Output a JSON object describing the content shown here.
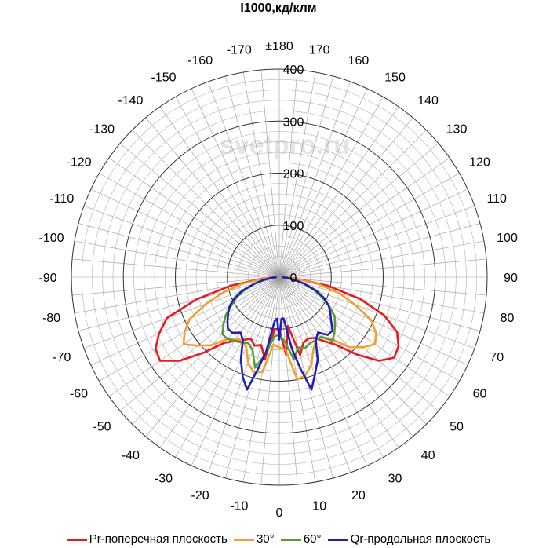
{
  "chart_data": {
    "type": "polar",
    "title": "I1000,кд/клм",
    "radial_axis": {
      "range": [
        0,
        400
      ],
      "labeled_ticks": [
        0,
        100,
        200,
        300,
        400
      ],
      "unit": "кд/клм"
    },
    "angle_ticks": [
      "±180",
      "170",
      "160",
      "150",
      "140",
      "130",
      "120",
      "110",
      "100",
      "90",
      "80",
      "70",
      "60",
      "50",
      "40",
      "30",
      "20",
      "10",
      "0",
      "-10",
      "-20",
      "-30",
      "-40",
      "-50",
      "-60",
      "-70",
      "-80",
      "-90",
      "-100",
      "-110",
      "-120",
      "-130",
      "-140",
      "-150",
      "-160",
      "-170"
    ],
    "angle_tick_values": [
      180,
      170,
      160,
      150,
      140,
      130,
      120,
      110,
      100,
      90,
      80,
      70,
      60,
      50,
      40,
      30,
      20,
      10,
      0,
      -10,
      -20,
      -30,
      -40,
      -50,
      -60,
      -70,
      -80,
      -90,
      -100,
      -110,
      -120,
      -130,
      -140,
      -150,
      -160,
      -170
    ],
    "grid": true,
    "legend_position": "bottom",
    "watermark": "svetpro.ru",
    "series": [
      {
        "name": "Pr-поперечная плоскость",
        "color": "#e8191f",
        "points": [
          [
            0,
            100
          ],
          [
            5,
            150
          ],
          [
            10,
            95
          ],
          [
            15,
            155
          ],
          [
            20,
            135
          ],
          [
            25,
            130
          ],
          [
            30,
            135
          ],
          [
            35,
            150
          ],
          [
            40,
            170
          ],
          [
            45,
            210
          ],
          [
            50,
            250
          ],
          [
            55,
            270
          ],
          [
            60,
            265
          ],
          [
            65,
            250
          ],
          [
            70,
            215
          ],
          [
            75,
            160
          ],
          [
            80,
            95
          ],
          [
            85,
            30
          ],
          [
            90,
            10
          ],
          [
            -5,
            100
          ],
          [
            -10,
            160
          ],
          [
            -15,
            135
          ],
          [
            -20,
            140
          ],
          [
            -25,
            130
          ],
          [
            -30,
            140
          ],
          [
            -35,
            150
          ],
          [
            -40,
            165
          ],
          [
            -45,
            205
          ],
          [
            -50,
            250
          ],
          [
            -55,
            280
          ],
          [
            -60,
            275
          ],
          [
            -65,
            255
          ],
          [
            -70,
            230
          ],
          [
            -75,
            165
          ],
          [
            -80,
            95
          ],
          [
            -85,
            30
          ],
          [
            -90,
            10
          ]
        ]
      },
      {
        "name": "30°",
        "color": "#f0a030",
        "points": [
          [
            0,
            135
          ],
          [
            5,
            140
          ],
          [
            10,
            200
          ],
          [
            15,
            195
          ],
          [
            20,
            180
          ],
          [
            25,
            155
          ],
          [
            30,
            140
          ],
          [
            35,
            140
          ],
          [
            40,
            155
          ],
          [
            45,
            190
          ],
          [
            50,
            210
          ],
          [
            55,
            225
          ],
          [
            60,
            215
          ],
          [
            65,
            195
          ],
          [
            70,
            155
          ],
          [
            75,
            120
          ],
          [
            80,
            75
          ],
          [
            85,
            25
          ],
          [
            90,
            5
          ],
          [
            -5,
            130
          ],
          [
            -10,
            185
          ],
          [
            -15,
            190
          ],
          [
            -20,
            175
          ],
          [
            -25,
            150
          ],
          [
            -30,
            140
          ],
          [
            -35,
            145
          ],
          [
            -40,
            155
          ],
          [
            -45,
            185
          ],
          [
            -50,
            205
          ],
          [
            -55,
            225
          ],
          [
            -60,
            210
          ],
          [
            -65,
            190
          ],
          [
            -70,
            150
          ],
          [
            -75,
            110
          ],
          [
            -80,
            70
          ],
          [
            -85,
            25
          ],
          [
            -90,
            5
          ]
        ]
      },
      {
        "name": "60°",
        "color": "#5a9a3a",
        "points": [
          [
            0,
            110
          ],
          [
            5,
            125
          ],
          [
            10,
            160
          ],
          [
            15,
            140
          ],
          [
            20,
            145
          ],
          [
            25,
            140
          ],
          [
            30,
            140
          ],
          [
            35,
            140
          ],
          [
            40,
            160
          ],
          [
            45,
            150
          ],
          [
            50,
            140
          ],
          [
            55,
            130
          ],
          [
            60,
            110
          ],
          [
            65,
            90
          ],
          [
            70,
            70
          ],
          [
            75,
            50
          ],
          [
            80,
            30
          ],
          [
            85,
            15
          ],
          [
            90,
            5
          ],
          [
            -5,
            115
          ],
          [
            -10,
            150
          ],
          [
            -15,
            180
          ],
          [
            -20,
            150
          ],
          [
            -25,
            140
          ],
          [
            -30,
            145
          ],
          [
            -35,
            150
          ],
          [
            -40,
            155
          ],
          [
            -45,
            155
          ],
          [
            -50,
            140
          ],
          [
            -55,
            125
          ],
          [
            -60,
            105
          ],
          [
            -65,
            90
          ],
          [
            -70,
            70
          ],
          [
            -75,
            50
          ],
          [
            -80,
            30
          ],
          [
            -85,
            15
          ],
          [
            -90,
            5
          ]
        ]
      },
      {
        "name": "Qr-продольная плоскость",
        "color": "#1f1fb4",
        "points": [
          [
            0,
            120
          ],
          [
            3,
            80
          ],
          [
            6,
            80
          ],
          [
            10,
            140
          ],
          [
            13,
            180
          ],
          [
            16,
            225
          ],
          [
            20,
            200
          ],
          [
            25,
            175
          ],
          [
            30,
            140
          ],
          [
            35,
            130
          ],
          [
            40,
            145
          ],
          [
            45,
            145
          ],
          [
            50,
            130
          ],
          [
            55,
            120
          ],
          [
            60,
            110
          ],
          [
            65,
            95
          ],
          [
            70,
            75
          ],
          [
            75,
            50
          ],
          [
            80,
            30
          ],
          [
            85,
            15
          ],
          [
            90,
            5
          ],
          [
            -3,
            80
          ],
          [
            -6,
            85
          ],
          [
            -10,
            145
          ],
          [
            -13,
            180
          ],
          [
            -16,
            225
          ],
          [
            -20,
            205
          ],
          [
            -25,
            175
          ],
          [
            -30,
            140
          ],
          [
            -35,
            130
          ],
          [
            -40,
            140
          ],
          [
            -45,
            140
          ],
          [
            -50,
            130
          ],
          [
            -55,
            120
          ],
          [
            -60,
            110
          ],
          [
            -65,
            95
          ],
          [
            -70,
            75
          ],
          [
            -75,
            50
          ],
          [
            -80,
            30
          ],
          [
            -85,
            15
          ],
          [
            -90,
            5
          ]
        ]
      }
    ]
  }
}
